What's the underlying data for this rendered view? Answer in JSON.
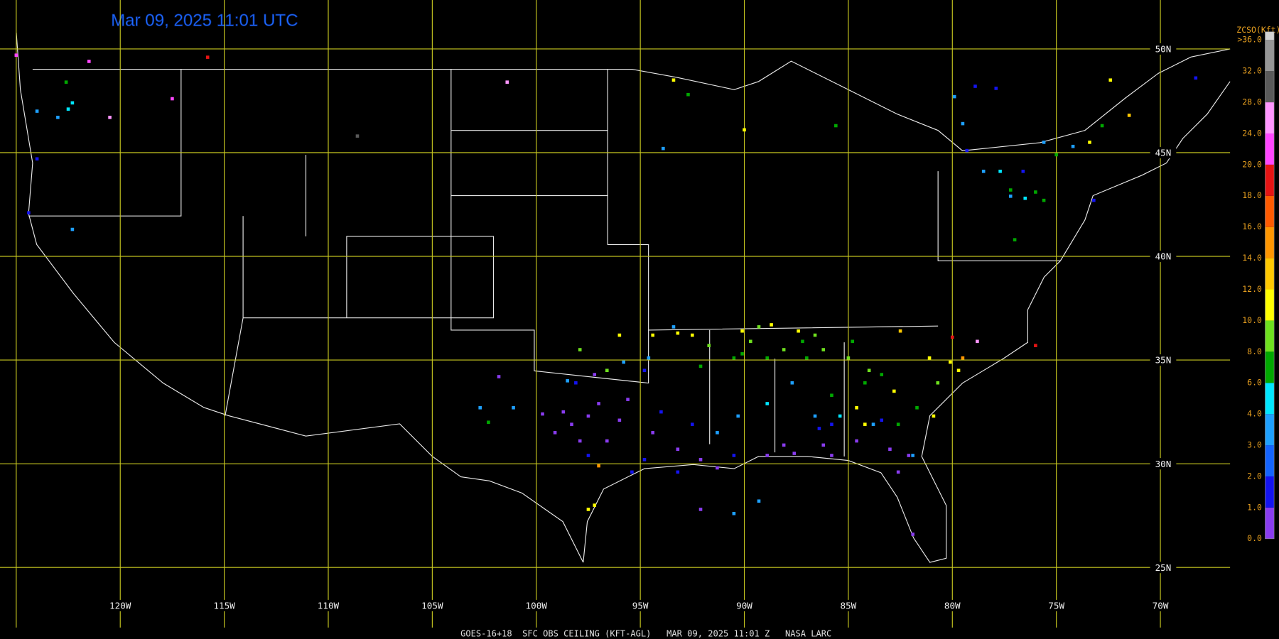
{
  "title": "Mar 09, 2025 11:01 UTC",
  "footer": "GOES-16+18  SFC OBS CEILING (KFT-AGL)   MAR 09, 2025 11:01 Z   NASA LARC",
  "map": {
    "lonlim": [
      -125.78,
      -66.65
    ],
    "latlim": [
      52.36,
      21.55
    ],
    "lonticks": [
      {
        "value": -125,
        "label": null
      },
      {
        "value": -120,
        "label": "120W"
      },
      {
        "value": -115,
        "label": "115W"
      },
      {
        "value": -110,
        "label": "110W"
      },
      {
        "value": -105,
        "label": "105W"
      },
      {
        "value": -100,
        "label": "100W"
      },
      {
        "value": -95,
        "label": "95W"
      },
      {
        "value": -90,
        "label": "90W"
      },
      {
        "value": -85,
        "label": "85W"
      },
      {
        "value": -80,
        "label": "80W"
      },
      {
        "value": -75,
        "label": "75W"
      },
      {
        "value": -70,
        "label": "70W"
      }
    ],
    "latticks": [
      {
        "value": 50,
        "label": "50N"
      },
      {
        "value": 45,
        "label": "45N"
      },
      {
        "value": 40,
        "label": "40N"
      },
      {
        "value": 35,
        "label": "35N"
      },
      {
        "value": 30,
        "label": "30N"
      },
      {
        "value": 25,
        "label": "25N"
      }
    ],
    "grid_color": "#c8c820"
  },
  "legend": {
    "title": "ZCSO(Kft)",
    "levels": [
      {
        "value": 0,
        "label": "0.0"
      },
      {
        "value": 1,
        "label": "1.0"
      },
      {
        "value": 2,
        "label": "2.0"
      },
      {
        "value": 3,
        "label": "3.0"
      },
      {
        "value": 4,
        "label": "4.0"
      },
      {
        "value": 6,
        "label": "6.0"
      },
      {
        "value": 8,
        "label": "8.0"
      },
      {
        "value": 10,
        "label": "10.0"
      },
      {
        "value": 12,
        "label": "12.0"
      },
      {
        "value": 14,
        "label": "14.0"
      },
      {
        "value": 16,
        "label": "16.0"
      },
      {
        "value": 18,
        "label": "18.0"
      },
      {
        "value": 20,
        "label": "20.0"
      },
      {
        "value": 24,
        "label": "24.0"
      },
      {
        "value": 28,
        "label": "28.0"
      },
      {
        "value": 32,
        "label": "32.0"
      },
      {
        "value": 36,
        "label": ">36.0"
      }
    ],
    "colors": [
      "#8a3cf0",
      "#1414f0",
      "#1464ff",
      "#1ea0ff",
      "#00e6ff",
      "#00a800",
      "#6ee01e",
      "#ffff00",
      "#ffc800",
      "#ff9600",
      "#ff5a00",
      "#e61414",
      "#ff46ff",
      "#ff96ff",
      "#5a5a5a",
      "#969696",
      "#d2d2d2"
    ]
  },
  "stations": [
    {
      "lon": -97.0,
      "lat": 32.9,
      "value": 0.5
    },
    {
      "lon": -97.5,
      "lat": 32.3,
      "value": 0.5
    },
    {
      "lon": -98.3,
      "lat": 31.9,
      "value": 0.5
    },
    {
      "lon": -98.7,
      "lat": 32.5,
      "value": 0.5
    },
    {
      "lon": -96.0,
      "lat": 32.1,
      "value": 0.5
    },
    {
      "lon": -96.6,
      "lat": 31.1,
      "value": 0.5
    },
    {
      "lon": -97.9,
      "lat": 31.1,
      "value": 0.5
    },
    {
      "lon": -99.1,
      "lat": 31.5,
      "value": 0.5
    },
    {
      "lon": -95.6,
      "lat": 33.1,
      "value": 0.5
    },
    {
      "lon": -94.4,
      "lat": 31.5,
      "value": 0.5
    },
    {
      "lon": -93.2,
      "lat": 30.7,
      "value": 0.5
    },
    {
      "lon": -92.1,
      "lat": 30.2,
      "value": 0.5
    },
    {
      "lon": -91.3,
      "lat": 29.8,
      "value": 0.5
    },
    {
      "lon": -88.9,
      "lat": 30.4,
      "value": 0.5
    },
    {
      "lon": -87.6,
      "lat": 30.5,
      "value": 0.5
    },
    {
      "lon": -86.2,
      "lat": 30.9,
      "value": 0.5
    },
    {
      "lon": -84.6,
      "lat": 31.1,
      "value": 0.5
    },
    {
      "lon": -83.0,
      "lat": 30.7,
      "value": 0.5
    },
    {
      "lon": -82.1,
      "lat": 30.4,
      "value": 0.5
    },
    {
      "lon": -82.6,
      "lat": 29.6,
      "value": 0.5
    },
    {
      "lon": -81.9,
      "lat": 26.6,
      "value": 0.5
    },
    {
      "lon": -92.1,
      "lat": 27.8,
      "value": 0.5
    },
    {
      "lon": -99.7,
      "lat": 32.4,
      "value": 0.5
    },
    {
      "lon": -101.8,
      "lat": 34.2,
      "value": 0.5
    },
    {
      "lon": -97.2,
      "lat": 34.3,
      "value": 0.5
    },
    {
      "lon": -85.8,
      "lat": 30.4,
      "value": 0.5
    },
    {
      "lon": -88.1,
      "lat": 30.9,
      "value": 0.5
    },
    {
      "lon": -95.4,
      "lat": 29.6,
      "value": 1.5
    },
    {
      "lon": -94.8,
      "lat": 30.2,
      "value": 1.5
    },
    {
      "lon": -97.5,
      "lat": 30.4,
      "value": 1.5
    },
    {
      "lon": -93.2,
      "lat": 29.6,
      "value": 1.5
    },
    {
      "lon": -90.5,
      "lat": 30.4,
      "value": 1.5
    },
    {
      "lon": -94.0,
      "lat": 32.5,
      "value": 1.5
    },
    {
      "lon": -92.5,
      "lat": 31.9,
      "value": 1.5
    },
    {
      "lon": -86.4,
      "lat": 31.7,
      "value": 1.5
    },
    {
      "lon": -85.8,
      "lat": 31.9,
      "value": 1.5
    },
    {
      "lon": -83.4,
      "lat": 32.1,
      "value": 1.5
    },
    {
      "lon": -79.3,
      "lat": 45.1,
      "value": 1.5
    },
    {
      "lon": -78.9,
      "lat": 48.2,
      "value": 1.5
    },
    {
      "lon": -77.9,
      "lat": 48.1,
      "value": 1.5
    },
    {
      "lon": -76.6,
      "lat": 44.1,
      "value": 1.5
    },
    {
      "lon": -73.2,
      "lat": 42.7,
      "value": 1.5
    },
    {
      "lon": -94.8,
      "lat": 34.5,
      "value": 1.5
    },
    {
      "lon": -98.1,
      "lat": 33.9,
      "value": 1.5
    },
    {
      "lon": -124.4,
      "lat": 42.1,
      "value": 1.5
    },
    {
      "lon": -124.0,
      "lat": 44.7,
      "value": 1.5
    },
    {
      "lon": -68.3,
      "lat": 48.6,
      "value": 1.5
    },
    {
      "lon": -98.5,
      "lat": 34.0,
      "value": 3.5
    },
    {
      "lon": -95.8,
      "lat": 34.9,
      "value": 3.5
    },
    {
      "lon": -94.6,
      "lat": 35.1,
      "value": 3.5
    },
    {
      "lon": -93.4,
      "lat": 36.6,
      "value": 3.5
    },
    {
      "lon": -91.3,
      "lat": 31.5,
      "value": 3.5
    },
    {
      "lon": -90.3,
      "lat": 32.3,
      "value": 3.5
    },
    {
      "lon": -87.7,
      "lat": 33.9,
      "value": 3.5
    },
    {
      "lon": -86.6,
      "lat": 32.3,
      "value": 3.5
    },
    {
      "lon": -83.8,
      "lat": 31.9,
      "value": 3.5
    },
    {
      "lon": -81.9,
      "lat": 30.4,
      "value": 3.5
    },
    {
      "lon": -78.5,
      "lat": 44.1,
      "value": 3.5
    },
    {
      "lon": -77.2,
      "lat": 42.9,
      "value": 3.5
    },
    {
      "lon": -75.6,
      "lat": 45.5,
      "value": 3.5
    },
    {
      "lon": -74.2,
      "lat": 45.3,
      "value": 3.5
    },
    {
      "lon": -79.9,
      "lat": 47.7,
      "value": 3.5
    },
    {
      "lon": -79.5,
      "lat": 46.4,
      "value": 3.5
    },
    {
      "lon": -122.3,
      "lat": 41.3,
      "value": 3.5
    },
    {
      "lon": -124.0,
      "lat": 47.0,
      "value": 3.5
    },
    {
      "lon": -123.0,
      "lat": 46.7,
      "value": 3.5
    },
    {
      "lon": -102.7,
      "lat": 32.7,
      "value": 3.5
    },
    {
      "lon": -101.1,
      "lat": 32.7,
      "value": 3.5
    },
    {
      "lon": -93.9,
      "lat": 45.2,
      "value": 3.5
    },
    {
      "lon": -89.3,
      "lat": 28.2,
      "value": 3.5
    },
    {
      "lon": -90.5,
      "lat": 27.6,
      "value": 3.5
    },
    {
      "lon": -88.9,
      "lat": 32.9,
      "value": 5
    },
    {
      "lon": -85.4,
      "lat": 32.3,
      "value": 5
    },
    {
      "lon": -76.5,
      "lat": 42.8,
      "value": 5
    },
    {
      "lon": -77.7,
      "lat": 44.1,
      "value": 5
    },
    {
      "lon": -122.3,
      "lat": 47.4,
      "value": 5
    },
    {
      "lon": -122.5,
      "lat": 47.1,
      "value": 5
    },
    {
      "lon": -90.5,
      "lat": 35.1,
      "value": 7
    },
    {
      "lon": -90.1,
      "lat": 35.3,
      "value": 7
    },
    {
      "lon": -92.1,
      "lat": 34.7,
      "value": 7
    },
    {
      "lon": -88.9,
      "lat": 35.1,
      "value": 7
    },
    {
      "lon": -87.0,
      "lat": 35.1,
      "value": 7
    },
    {
      "lon": -85.8,
      "lat": 33.3,
      "value": 7
    },
    {
      "lon": -84.2,
      "lat": 33.9,
      "value": 7
    },
    {
      "lon": -83.4,
      "lat": 34.3,
      "value": 7
    },
    {
      "lon": -82.6,
      "lat": 31.9,
      "value": 7
    },
    {
      "lon": -81.7,
      "lat": 32.7,
      "value": 7
    },
    {
      "lon": -77.2,
      "lat": 43.2,
      "value": 7
    },
    {
      "lon": -75.6,
      "lat": 42.7,
      "value": 7
    },
    {
      "lon": -76.0,
      "lat": 43.1,
      "value": 7
    },
    {
      "lon": -75.0,
      "lat": 44.9,
      "value": 7
    },
    {
      "lon": -72.8,
      "lat": 46.3,
      "value": 7
    },
    {
      "lon": -92.7,
      "lat": 47.8,
      "value": 7
    },
    {
      "lon": -85.6,
      "lat": 46.3,
      "value": 7
    },
    {
      "lon": -77.0,
      "lat": 40.8,
      "value": 7
    },
    {
      "lon": -102.3,
      "lat": 32.0,
      "value": 7
    },
    {
      "lon": -122.6,
      "lat": 48.4,
      "value": 7
    },
    {
      "lon": -87.2,
      "lat": 35.9,
      "value": 7
    },
    {
      "lon": -84.8,
      "lat": 35.9,
      "value": 7
    },
    {
      "lon": -89.7,
      "lat": 35.9,
      "value": 9
    },
    {
      "lon": -88.1,
      "lat": 35.5,
      "value": 9
    },
    {
      "lon": -86.6,
      "lat": 36.2,
      "value": 9
    },
    {
      "lon": -85.0,
      "lat": 35.1,
      "value": 9
    },
    {
      "lon": -84.0,
      "lat": 34.5,
      "value": 9
    },
    {
      "lon": -80.7,
      "lat": 33.9,
      "value": 9
    },
    {
      "lon": -89.3,
      "lat": 36.6,
      "value": 9
    },
    {
      "lon": -91.7,
      "lat": 35.7,
      "value": 9
    },
    {
      "lon": -86.2,
      "lat": 35.5,
      "value": 9
    },
    {
      "lon": -96.6,
      "lat": 34.5,
      "value": 9
    },
    {
      "lon": -97.9,
      "lat": 35.5,
      "value": 9
    },
    {
      "lon": -96.0,
      "lat": 36.2,
      "value": 11
    },
    {
      "lon": -94.4,
      "lat": 36.2,
      "value": 11
    },
    {
      "lon": -93.2,
      "lat": 36.3,
      "value": 11
    },
    {
      "lon": -92.5,
      "lat": 36.2,
      "value": 11
    },
    {
      "lon": -90.1,
      "lat": 36.4,
      "value": 11
    },
    {
      "lon": -88.7,
      "lat": 36.7,
      "value": 11
    },
    {
      "lon": -87.4,
      "lat": 36.4,
      "value": 11
    },
    {
      "lon": -84.6,
      "lat": 32.7,
      "value": 11
    },
    {
      "lon": -84.2,
      "lat": 31.9,
      "value": 11
    },
    {
      "lon": -82.8,
      "lat": 33.5,
      "value": 11
    },
    {
      "lon": -81.1,
      "lat": 35.1,
      "value": 11
    },
    {
      "lon": -79.7,
      "lat": 34.5,
      "value": 11
    },
    {
      "lon": -73.4,
      "lat": 45.5,
      "value": 11
    },
    {
      "lon": -90.0,
      "lat": 46.1,
      "value": 11
    },
    {
      "lon": -72.4,
      "lat": 48.5,
      "value": 11
    },
    {
      "lon": -97.5,
      "lat": 27.8,
      "value": 11
    },
    {
      "lon": -97.2,
      "lat": 28.0,
      "value": 11
    },
    {
      "lon": -80.9,
      "lat": 32.3,
      "value": 11
    },
    {
      "lon": -80.1,
      "lat": 34.9,
      "value": 11
    },
    {
      "lon": -93.4,
      "lat": 48.5,
      "value": 11
    },
    {
      "lon": -79.5,
      "lat": 35.1,
      "value": 15
    },
    {
      "lon": -82.5,
      "lat": 36.4,
      "value": 13
    },
    {
      "lon": -97.0,
      "lat": 29.9,
      "value": 15
    },
    {
      "lon": -71.5,
      "lat": 46.8,
      "value": 13
    },
    {
      "lon": -80.0,
      "lat": 36.1,
      "value": 19
    },
    {
      "lon": -76.0,
      "lat": 35.7,
      "value": 19
    },
    {
      "lon": -115.8,
      "lat": 49.6,
      "value": 19
    },
    {
      "lon": -78.8,
      "lat": 35.9,
      "value": 26
    },
    {
      "lon": -117.5,
      "lat": 47.6,
      "value": 22
    },
    {
      "lon": -120.5,
      "lat": 46.7,
      "value": 26
    },
    {
      "lon": -101.4,
      "lat": 48.4,
      "value": 26
    },
    {
      "lon": -125.0,
      "lat": 49.7,
      "value": 22
    },
    {
      "lon": -121.5,
      "lat": 49.4,
      "value": 22
    },
    {
      "lon": -108.6,
      "lat": 45.8,
      "value": 30
    }
  ]
}
